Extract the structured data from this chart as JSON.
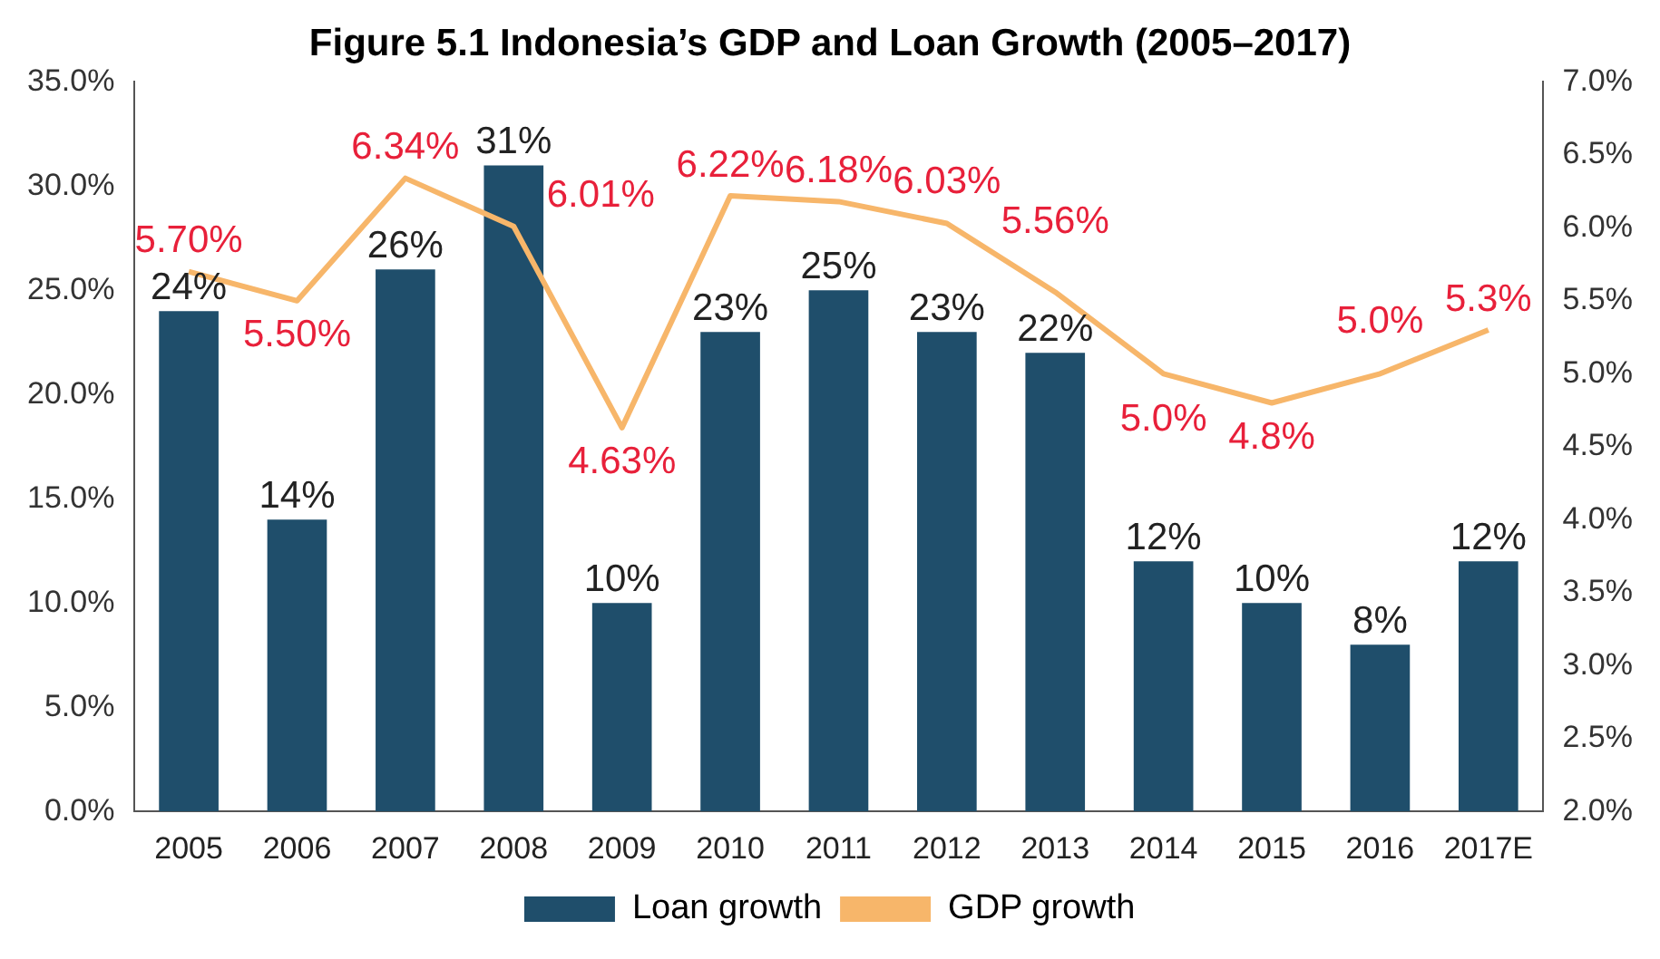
{
  "chart_data": {
    "type": "bar",
    "title": "Figure 5.1 Indonesia’s GDP and Loan Growth (2005–2017)",
    "categories": [
      "2005",
      "2006",
      "2007",
      "2008",
      "2009",
      "2010",
      "2011",
      "2012",
      "2013",
      "2014",
      "2015",
      "2016",
      "2017E"
    ],
    "series": [
      {
        "name": "Loan growth",
        "color": "#1f4e6b",
        "values": [
          24,
          14,
          26,
          31,
          10,
          23,
          25,
          23,
          22,
          12,
          10,
          8,
          12
        ],
        "value_labels": [
          "24%",
          "14%",
          "26%",
          "31%",
          "10%",
          "23%",
          "25%",
          "23%",
          "22%",
          "12%",
          "10%",
          "8%",
          "12%"
        ]
      },
      {
        "name": "GDP growth",
        "type": "line",
        "axis": "y2",
        "color": "#f7b66a",
        "values": [
          5.7,
          5.5,
          6.34,
          6.01,
          4.63,
          6.22,
          6.18,
          6.03,
          5.56,
          5.0,
          4.8,
          5.0,
          5.3
        ],
        "value_labels": [
          "5.70%",
          "5.50%",
          "6.34%",
          "6.01%",
          "4.63%",
          "6.22%",
          "6.18%",
          "6.03%",
          "5.56%",
          "5.0%",
          "4.8%",
          "5.0%",
          "5.3%"
        ]
      }
    ],
    "ylim": [
      0,
      35
    ],
    "yticks": [
      {
        "value": 0,
        "label": "0.0%"
      },
      {
        "value": 5,
        "label": "5.0%"
      },
      {
        "value": 10,
        "label": "10.0%"
      },
      {
        "value": 15,
        "label": "15.0%"
      },
      {
        "value": 20,
        "label": "20.0%"
      },
      {
        "value": 25,
        "label": "25.0%"
      },
      {
        "value": 30,
        "label": "30.0%"
      },
      {
        "value": 35,
        "label": "35.0%"
      }
    ],
    "y2lim": [
      2,
      7
    ],
    "y2ticks": [
      {
        "value": 2,
        "label": "2.0%"
      },
      {
        "value": 2.5,
        "label": "2.5%"
      },
      {
        "value": 3,
        "label": "3.0%"
      },
      {
        "value": 3.5,
        "label": "3.5%"
      },
      {
        "value": 4,
        "label": "4.0%"
      },
      {
        "value": 4.5,
        "label": "4.5%"
      },
      {
        "value": 5,
        "label": "5.0%"
      },
      {
        "value": 5.5,
        "label": "5.5%"
      },
      {
        "value": 6,
        "label": "6.0%"
      },
      {
        "value": 6.5,
        "label": "6.5%"
      },
      {
        "value": 7,
        "label": "7.0%"
      }
    ],
    "grid": false,
    "legend": "bottom",
    "marker": "none",
    "line_style": "solid"
  }
}
